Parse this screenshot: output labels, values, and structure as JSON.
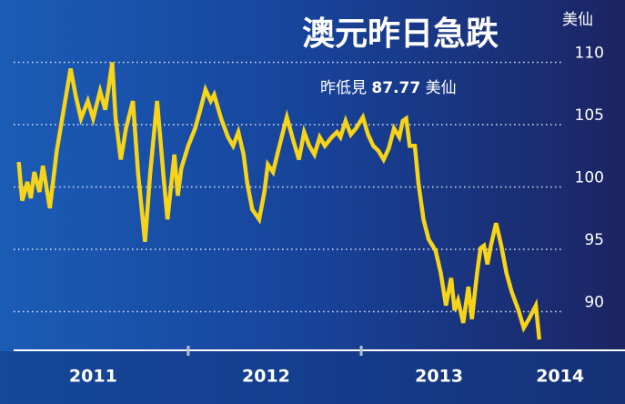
{
  "chart_data": {
    "type": "line",
    "title": "澳元昨日急跌",
    "unit_label": "美仙",
    "annotation": {
      "prefix": "昨低見",
      "value": "87.77",
      "suffix": "美仙"
    },
    "color": "#f7d417",
    "x": [
      2011.02,
      2011.04,
      2011.07,
      2011.09,
      2011.11,
      2011.14,
      2011.16,
      2011.2,
      2011.24,
      2011.28,
      2011.32,
      2011.35,
      2011.38,
      2011.42,
      2011.45,
      2011.49,
      2011.52,
      2011.54,
      2011.56,
      2011.58,
      2011.61,
      2011.64,
      2011.68,
      2011.71,
      2011.75,
      2011.78,
      2011.82,
      2011.86,
      2011.88,
      2011.92,
      2011.94,
      2011.96,
      2012.0,
      2012.04,
      2012.07,
      2012.1,
      2012.13,
      2012.15,
      2012.19,
      2012.23,
      2012.26,
      2012.29,
      2012.32,
      2012.34,
      2012.37,
      2012.41,
      2012.44,
      2012.46,
      2012.49,
      2012.52,
      2012.54,
      2012.57,
      2012.61,
      2012.64,
      2012.67,
      2012.7,
      2012.73,
      2012.76,
      2012.79,
      2012.83,
      2012.86,
      2012.88,
      2012.91,
      2012.94,
      2012.97,
      2013.01,
      2013.04,
      2013.07,
      2013.1,
      2013.13,
      2013.16,
      2013.19,
      2013.22,
      2013.24,
      2013.26,
      2013.28,
      2013.31,
      2013.33,
      2013.36,
      2013.39,
      2013.43,
      2013.46,
      2013.49,
      2013.52,
      2013.54,
      2013.56,
      2013.59,
      2013.62,
      2013.64,
      2013.67,
      2013.69,
      2013.71,
      2013.73,
      2013.75,
      2013.78,
      2013.81,
      2013.84,
      2013.87,
      2013.91,
      2013.94,
      2013.97,
      2014.01,
      2014.03
    ],
    "values": [
      102.0,
      98.9,
      100.4,
      99.1,
      101.2,
      99.6,
      101.7,
      98.3,
      102.9,
      106.2,
      109.5,
      107.3,
      105.5,
      106.9,
      105.5,
      107.7,
      106.2,
      108.0,
      110.0,
      105.5,
      102.2,
      104.7,
      106.9,
      101.1,
      95.6,
      101.1,
      106.9,
      100.4,
      97.4,
      102.6,
      99.3,
      101.5,
      103.3,
      104.7,
      106.2,
      107.8,
      106.9,
      107.4,
      105.5,
      104.0,
      103.3,
      104.4,
      102.6,
      100.4,
      98.2,
      97.4,
      99.6,
      101.8,
      101.2,
      102.9,
      104.0,
      105.6,
      103.6,
      102.2,
      104.4,
      103.3,
      102.6,
      104.0,
      103.3,
      104.0,
      104.4,
      104.0,
      105.3,
      104.2,
      104.7,
      105.6,
      104.2,
      103.3,
      102.9,
      102.2,
      103.1,
      104.7,
      104.0,
      105.3,
      105.5,
      103.3,
      103.3,
      100.4,
      97.4,
      95.8,
      94.9,
      93.1,
      90.5,
      92.7,
      90.1,
      90.9,
      89.1,
      92.0,
      89.4,
      93.1,
      95.1,
      95.3,
      93.8,
      95.3,
      97.1,
      95.3,
      93.1,
      91.6,
      90.1,
      88.7,
      89.4,
      90.5,
      87.77
    ],
    "xlim": [
      2010.98,
      2014.52
    ],
    "xticks": [
      2012,
      2013
    ],
    "xlabels": [
      {
        "value": 2011.45,
        "label": "2011"
      },
      {
        "value": 2012.45,
        "label": "2012"
      },
      {
        "value": 2013.45,
        "label": "2013"
      },
      {
        "value": 2014.15,
        "label": "2014"
      }
    ],
    "ylim": [
      86.9,
      115
    ],
    "yticks": [
      90,
      95,
      100,
      105,
      110
    ],
    "grid": true
  }
}
